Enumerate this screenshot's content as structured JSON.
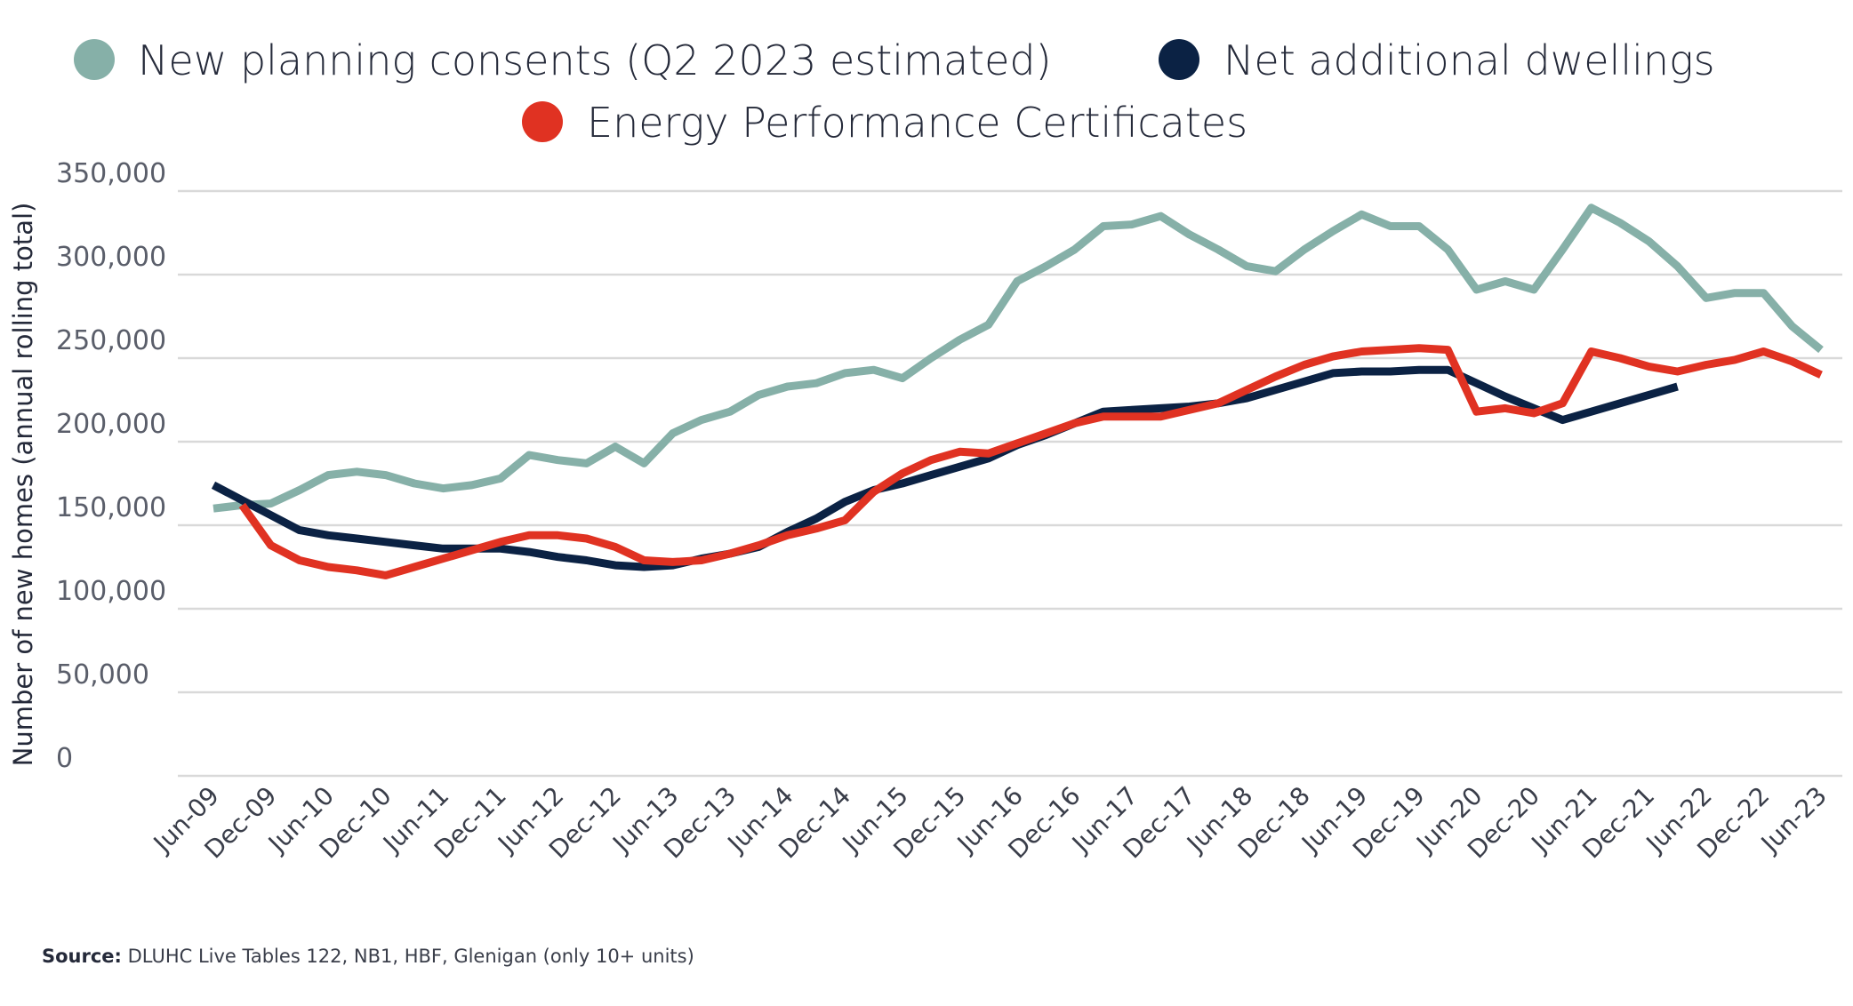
{
  "chart_data": {
    "type": "line",
    "title": "",
    "xlabel": "",
    "ylabel": "Number of new homes (annual rolling total)",
    "ylim": [
      0,
      350000
    ],
    "yticks": [
      0,
      50000,
      100000,
      150000,
      200000,
      250000,
      300000,
      350000
    ],
    "ytick_labels": [
      "0",
      "50,000",
      "100,000",
      "150,000",
      "200,000",
      "250,000",
      "300,000",
      "350,000"
    ],
    "grid": true,
    "legend_position": "top-center",
    "x_labels": [
      "Jun-09",
      "Dec-09",
      "Jun-10",
      "Dec-10",
      "Jun-11",
      "Dec-11",
      "Jun-12",
      "Dec-12",
      "Jun-13",
      "Dec-13",
      "Jun-14",
      "Dec-14",
      "Jun-15",
      "Dec-15",
      "Jun-16",
      "Dec-16",
      "Jun-17",
      "Dec-17",
      "Jun-18",
      "Dec-18",
      "Jun-19",
      "Dec-19",
      "Jun-20",
      "Dec-20",
      "Jun-21",
      "Dec-21",
      "Jun-22",
      "Dec-22",
      "Jun-23"
    ],
    "x": [
      "Jun-09",
      "Sep-09",
      "Dec-09",
      "Mar-10",
      "Jun-10",
      "Sep-10",
      "Dec-10",
      "Mar-11",
      "Jun-11",
      "Sep-11",
      "Dec-11",
      "Mar-12",
      "Jun-12",
      "Sep-12",
      "Dec-12",
      "Mar-13",
      "Jun-13",
      "Sep-13",
      "Dec-13",
      "Mar-14",
      "Jun-14",
      "Sep-14",
      "Dec-14",
      "Mar-15",
      "Jun-15",
      "Sep-15",
      "Dec-15",
      "Mar-16",
      "Jun-16",
      "Sep-16",
      "Dec-16",
      "Mar-17",
      "Jun-17",
      "Sep-17",
      "Dec-17",
      "Mar-18",
      "Jun-18",
      "Sep-18",
      "Dec-18",
      "Mar-19",
      "Jun-19",
      "Sep-19",
      "Dec-19",
      "Mar-20",
      "Jun-20",
      "Sep-20",
      "Dec-20",
      "Mar-21",
      "Jun-21",
      "Sep-21",
      "Dec-21",
      "Mar-22",
      "Jun-22",
      "Sep-22",
      "Dec-22",
      "Mar-23",
      "Jun-23"
    ],
    "series": [
      {
        "name": "New planning consents (Q2 2023 estimated)",
        "color": "#86b0a8",
        "values": [
          160000,
          162000,
          163000,
          171000,
          180000,
          182000,
          180000,
          175000,
          172000,
          174000,
          178000,
          192000,
          189000,
          187000,
          197000,
          187000,
          205000,
          213000,
          218000,
          228000,
          233000,
          235000,
          241000,
          243000,
          238000,
          250000,
          261000,
          270000,
          296000,
          305000,
          315000,
          329000,
          330000,
          335000,
          324000,
          315000,
          305000,
          302000,
          315000,
          326000,
          336000,
          329000,
          329000,
          315000,
          291000,
          296000,
          291000,
          315000,
          340000,
          331000,
          320000,
          305000,
          286000,
          289000,
          289000,
          269000,
          255000
        ]
      },
      {
        "name": "Net additional dwellings",
        "color": "#0b2244",
        "values": [
          174000,
          165000,
          156000,
          147000,
          144000,
          142000,
          140000,
          138000,
          136000,
          136000,
          136000,
          134000,
          131000,
          129000,
          126000,
          125000,
          126000,
          130000,
          133000,
          137000,
          146000,
          154000,
          164000,
          171000,
          175000,
          180000,
          185000,
          190000,
          198000,
          204000,
          211000,
          218000,
          219000,
          220000,
          221000,
          223000,
          226000,
          231000,
          236000,
          241000,
          242000,
          242000,
          243000,
          243000,
          235000,
          227000,
          220000,
          213000,
          218000,
          223000,
          228000,
          233000,
          null,
          null,
          null,
          null,
          null
        ]
      },
      {
        "name": "Energy Performance Certificates",
        "color": "#e03222",
        "values": [
          null,
          162000,
          138000,
          129000,
          125000,
          123000,
          120000,
          125000,
          130000,
          135000,
          140000,
          144000,
          144000,
          142000,
          137000,
          129000,
          128000,
          129000,
          133000,
          138000,
          144000,
          148000,
          153000,
          170000,
          181000,
          189000,
          194000,
          193000,
          199000,
          205000,
          211000,
          215000,
          215000,
          215000,
          219000,
          223000,
          231000,
          239000,
          246000,
          251000,
          254000,
          255000,
          256000,
          255000,
          218000,
          220000,
          217000,
          223000,
          254000,
          250000,
          245000,
          242000,
          246000,
          249000,
          254000,
          248000,
          240000
        ]
      }
    ]
  },
  "legend": {
    "items": [
      {
        "label": "New planning consents (Q2 2023 estimated)",
        "color": "#86b0a8"
      },
      {
        "label": "Net additional dwellings",
        "color": "#0b2244"
      },
      {
        "label": "Energy Performance Certificates",
        "color": "#e03222"
      }
    ]
  },
  "footer": {
    "source_label": "Source:",
    "source_text": " DLUHC Live Tables 122, NB1, HBF, Glenigan (only 10+ units)"
  }
}
